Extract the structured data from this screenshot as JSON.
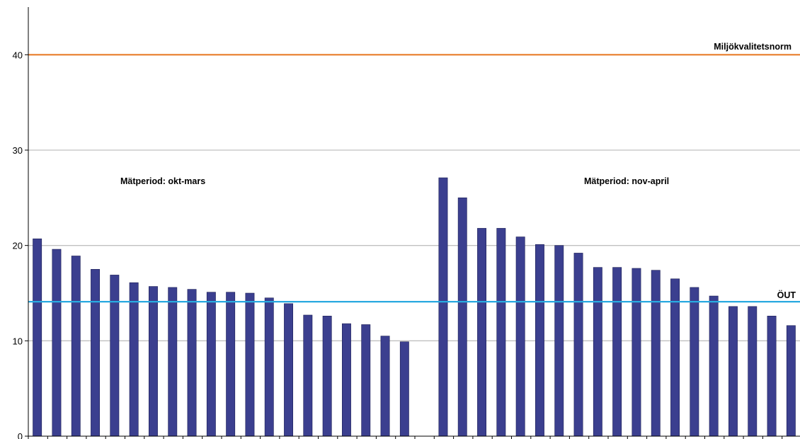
{
  "chart_data": {
    "type": "bar",
    "ylim": [
      0,
      45
    ],
    "yticks": [
      0,
      10,
      20,
      30,
      40
    ],
    "grid": true,
    "bar_color": "#3b3f8f",
    "groups": [
      {
        "label": "Mätperiod: okt-mars",
        "values": [
          20.7,
          19.6,
          18.9,
          17.5,
          16.9,
          16.1,
          15.7,
          15.6,
          15.4,
          15.1,
          15.1,
          15.0,
          14.5,
          13.9,
          12.7,
          12.6,
          11.8,
          11.7,
          10.5,
          9.9
        ]
      },
      {
        "label": "Mätperiod: nov-april",
        "values": [
          27.1,
          25.0,
          21.8,
          21.8,
          20.9,
          20.1,
          20.0,
          19.2,
          17.7,
          17.7,
          17.6,
          17.4,
          16.5,
          15.6,
          14.7,
          13.6,
          13.6,
          12.6,
          11.6
        ]
      }
    ],
    "reference_lines": [
      {
        "label": "Miljökvalitetsnorm",
        "value": 40,
        "color": "#e87d2a"
      },
      {
        "label": "ÖUT",
        "value": 14.1,
        "color": "#29a9e0"
      }
    ]
  }
}
